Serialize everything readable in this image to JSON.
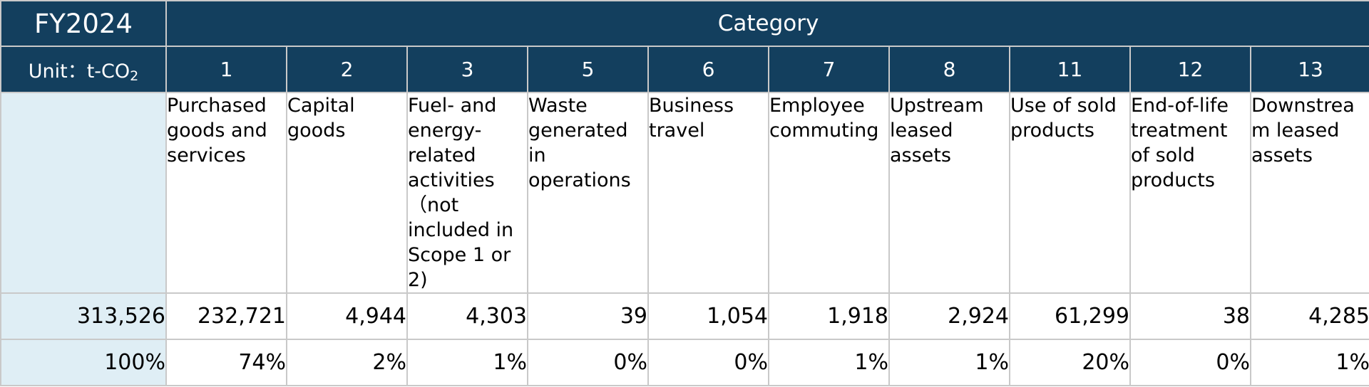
{
  "header": {
    "fiscal_year": "FY2024",
    "unit_label": "Unit：t-CO",
    "unit_subscript": "2",
    "category_title": "Category"
  },
  "categories": [
    {
      "number": "1",
      "name": "Purchased goods and services",
      "emissions": "232,721",
      "share": "74%"
    },
    {
      "number": "2",
      "name": "Capital goods",
      "emissions": "4,944",
      "share": "2%"
    },
    {
      "number": "3",
      "name": "Fuel- and energy-related activities （not included in Scope 1 or 2)",
      "emissions": "4,303",
      "share": "1%"
    },
    {
      "number": "5",
      "name": "Waste generated in operations",
      "emissions": "39",
      "share": "0%"
    },
    {
      "number": "6",
      "name": "Business travel",
      "emissions": "1,054",
      "share": "0%"
    },
    {
      "number": "7",
      "name": "Employee commuting",
      "emissions": "1,918",
      "share": "1%"
    },
    {
      "number": "8",
      "name": "Upstream leased assets",
      "emissions": "2,924",
      "share": "1%"
    },
    {
      "number": "11",
      "name": "Use of sold products",
      "emissions": "61,299",
      "share": "20%"
    },
    {
      "number": "12",
      "name": "End-of-life treatment of sold products",
      "emissions": "38",
      "share": "0%"
    },
    {
      "number": "13",
      "name": "Downstream leased assets",
      "emissions": "4,285",
      "share": "1%"
    }
  ],
  "totals": {
    "emissions": "313,526",
    "share": "100%"
  },
  "colors": {
    "header_background": "#133f5e",
    "total_column_background": "#dfeef5",
    "grid_lines": "#c9c9c9"
  }
}
